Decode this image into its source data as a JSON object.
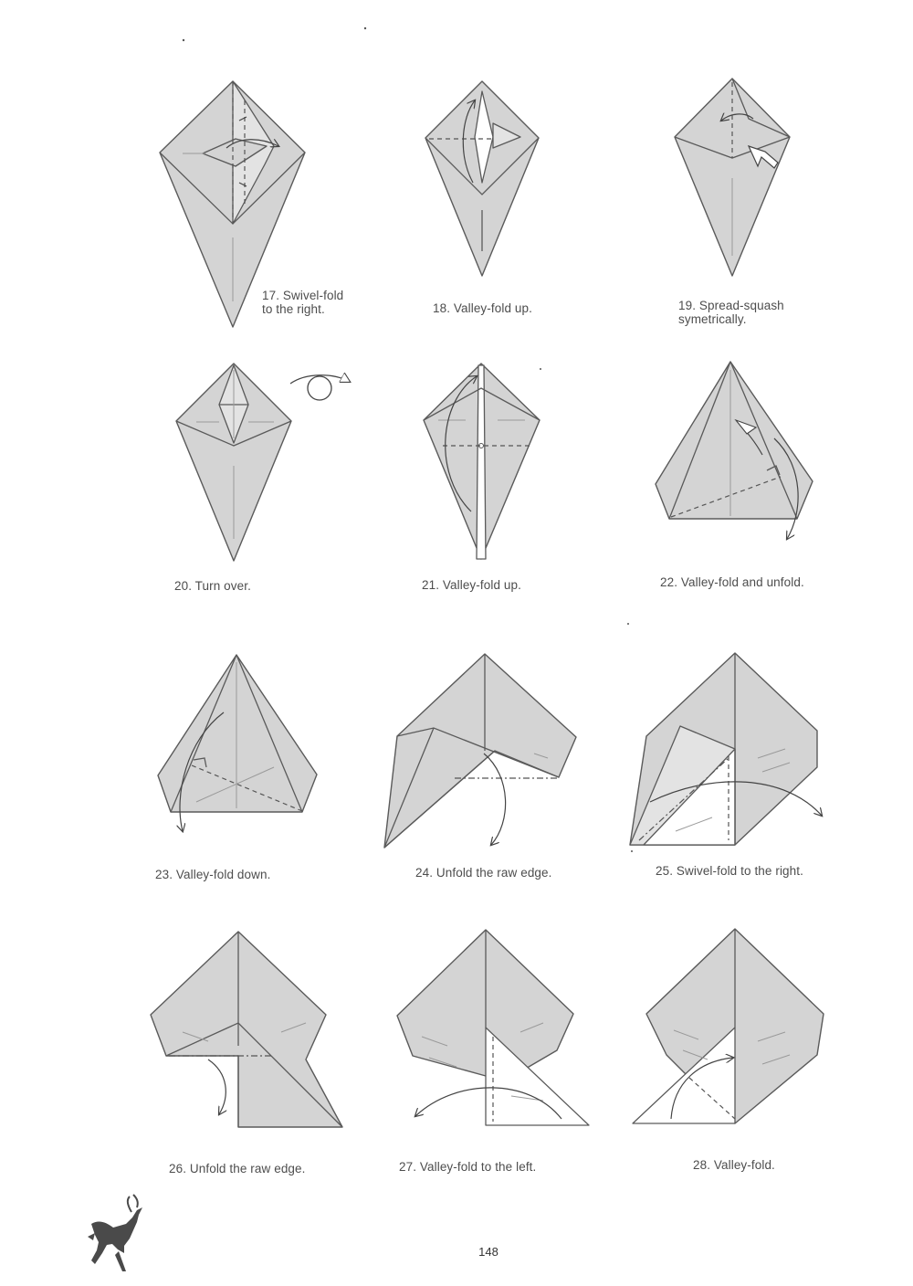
{
  "steps": [
    {
      "number": 17,
      "caption": "17. Swivel-fold\nto the right."
    },
    {
      "number": 18,
      "caption": "18. Valley-fold up."
    },
    {
      "number": 19,
      "caption": "19. Spread-squash\nsymetrically."
    },
    {
      "number": 20,
      "caption": "20. Turn over."
    },
    {
      "number": 21,
      "caption": "21. Valley-fold up."
    },
    {
      "number": 22,
      "caption": "22. Valley-fold and unfold."
    },
    {
      "number": 23,
      "caption": "23. Valley-fold down."
    },
    {
      "number": 24,
      "caption": "24. Unfold the raw edge."
    },
    {
      "number": 25,
      "caption": "25. Swivel-fold to the right."
    },
    {
      "number": 26,
      "caption": "26. Unfold the raw edge."
    },
    {
      "number": 27,
      "caption": "27. Valley-fold to the left."
    },
    {
      "number": 28,
      "caption": "28. Valley-fold."
    }
  ],
  "page_number": "148",
  "icons": {
    "turn_over": "turn-over-icon",
    "decoration": "deer-silhouette-icon"
  },
  "colors": {
    "paper": "#d4d4d4",
    "line": "#5a5a5a",
    "text": "#4d4d4d"
  }
}
